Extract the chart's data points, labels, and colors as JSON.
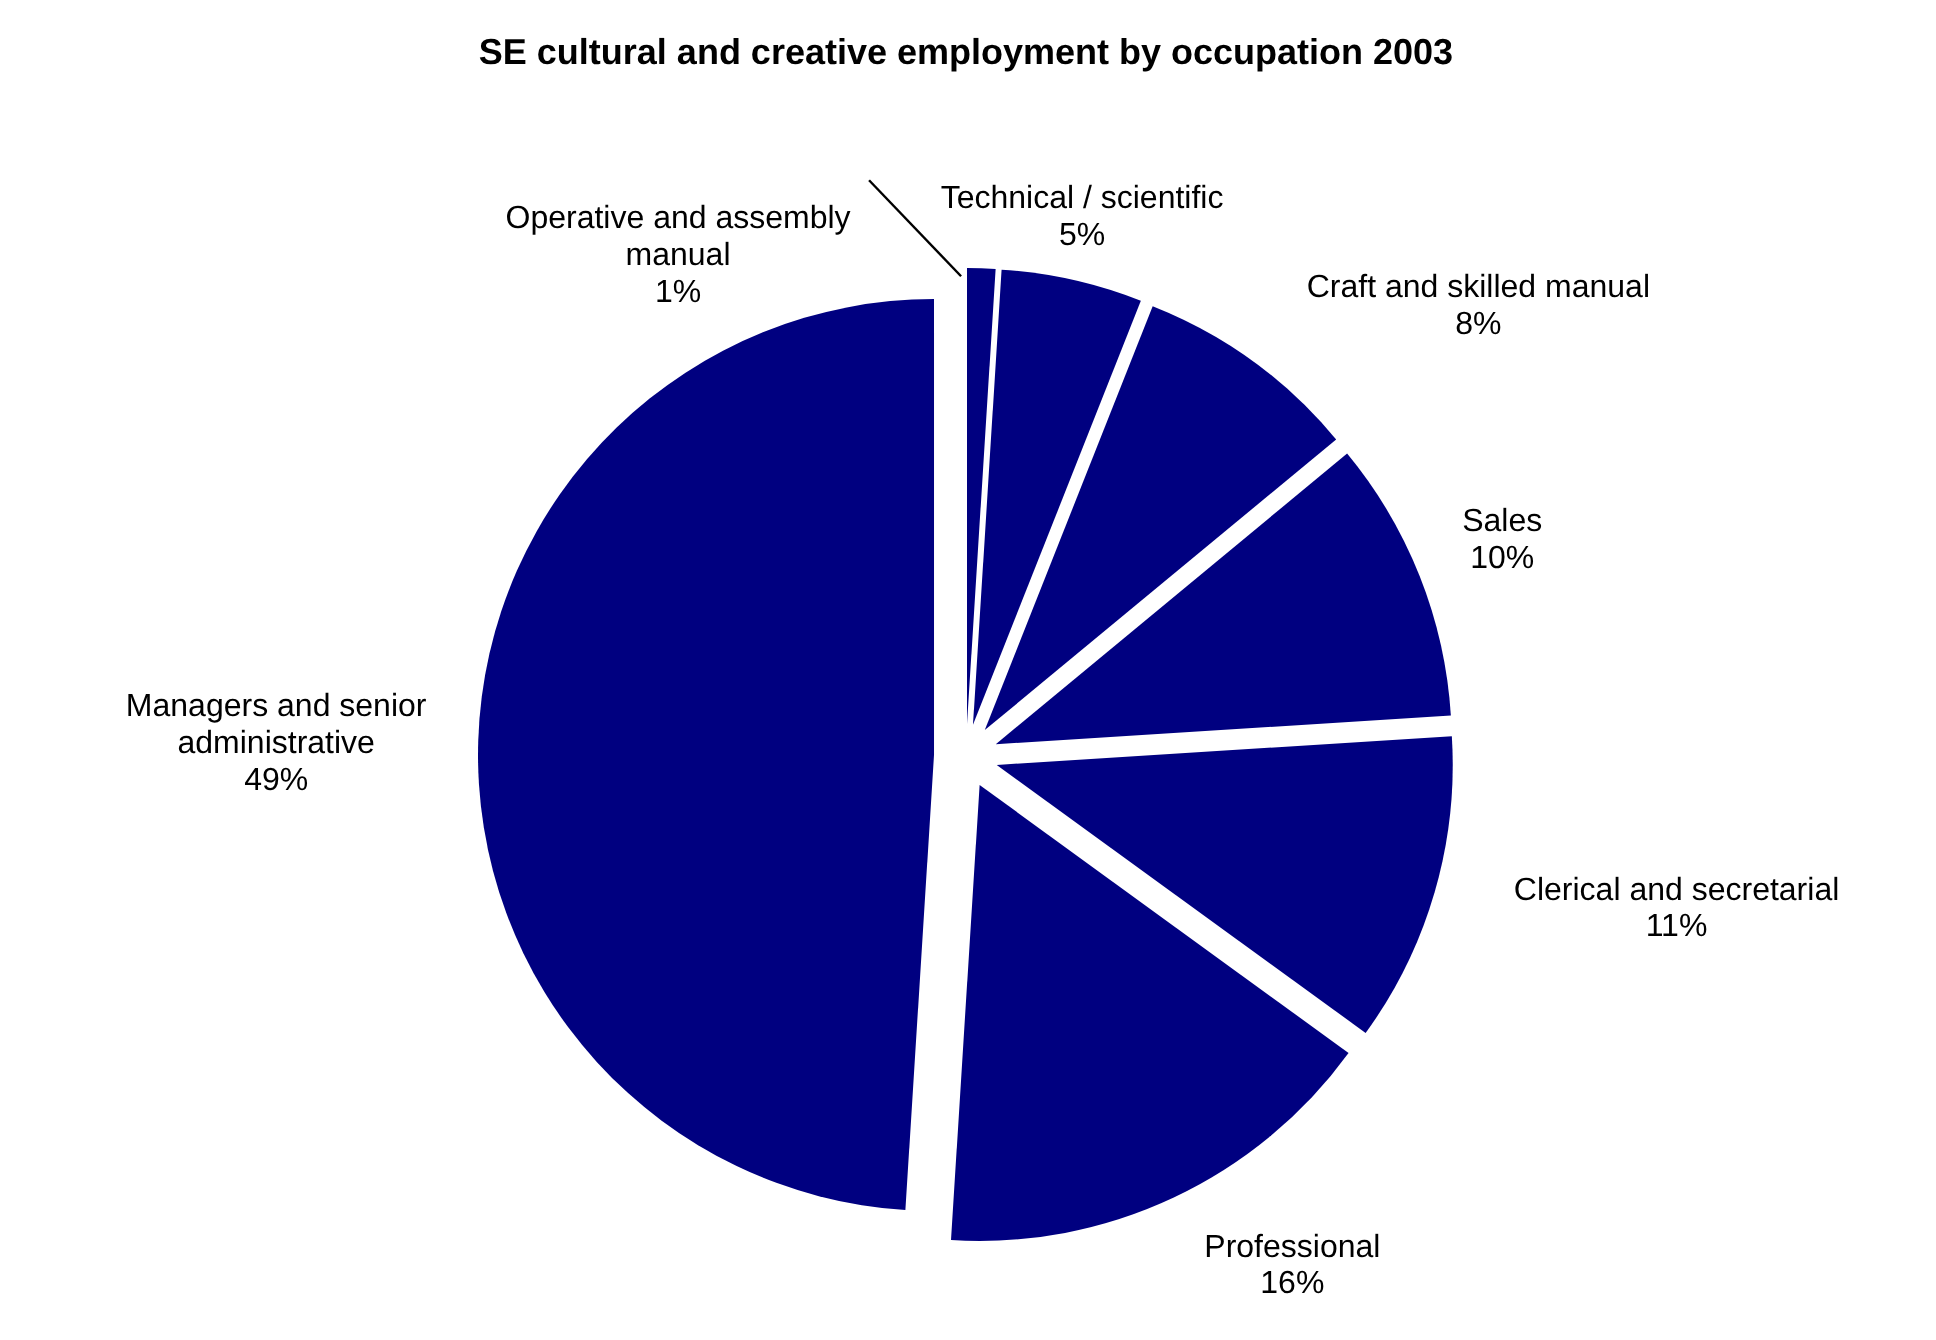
{
  "chart_data": {
    "type": "pie",
    "title": "SE cultural and creative employment by occupation 2003",
    "categories": [
      "Operative and assembly manual",
      "Technical / scientific",
      "Craft and skilled manual",
      "Sales",
      "Clerical and secretarial",
      "Professional",
      "Managers and senior administrative"
    ],
    "values": [
      1,
      5,
      8,
      10,
      11,
      16,
      49
    ],
    "value_labels": [
      "1%",
      "5%",
      "8%",
      "10%",
      "11%",
      "16%",
      "49%"
    ],
    "colors": [
      "#000080",
      "#000080",
      "#000080",
      "#000080",
      "#000080",
      "#000080",
      "#000080"
    ]
  }
}
